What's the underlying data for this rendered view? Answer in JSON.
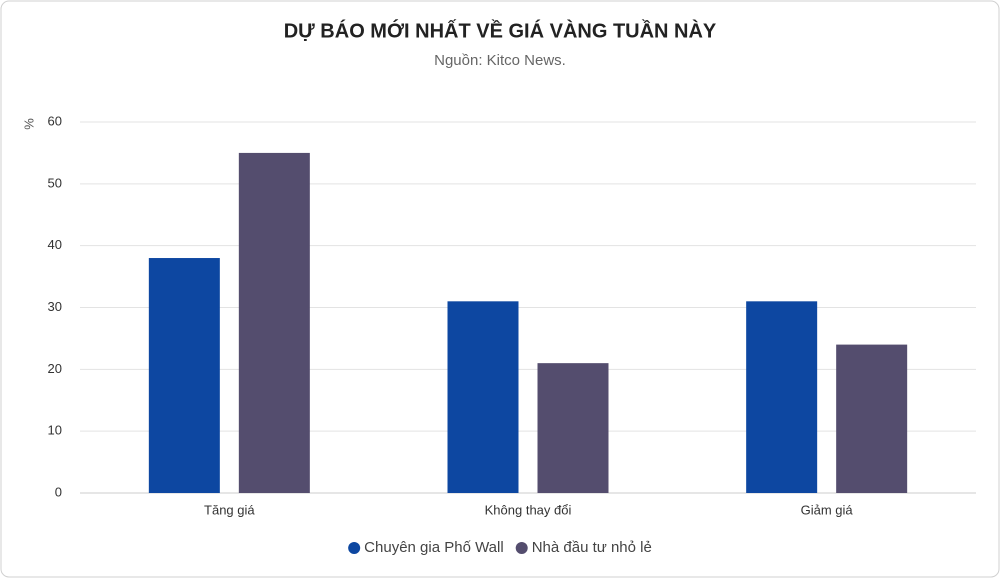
{
  "chart_data": {
    "type": "bar",
    "title": "DỰ BÁO MỚI NHẤT VỀ GIÁ VÀNG TUẦN NÀY",
    "subtitle": "Nguồn: Kitco News.",
    "y_label": "%",
    "categories": [
      "Tăng giá",
      "Không thay đổi",
      "Giảm giá"
    ],
    "series": [
      {
        "name": "Chuyên gia Phố Wall",
        "color": "#0d47a1",
        "values": [
          38,
          31,
          31
        ]
      },
      {
        "name": "Nhà đầu tư nhỏ lẻ",
        "color": "#544d6e",
        "values": [
          55,
          21,
          24
        ]
      }
    ],
    "ylim": [
      0,
      60
    ],
    "yticks": [
      0,
      10,
      20,
      30,
      40,
      50,
      60
    ],
    "grid": true,
    "legend": "bottom"
  }
}
